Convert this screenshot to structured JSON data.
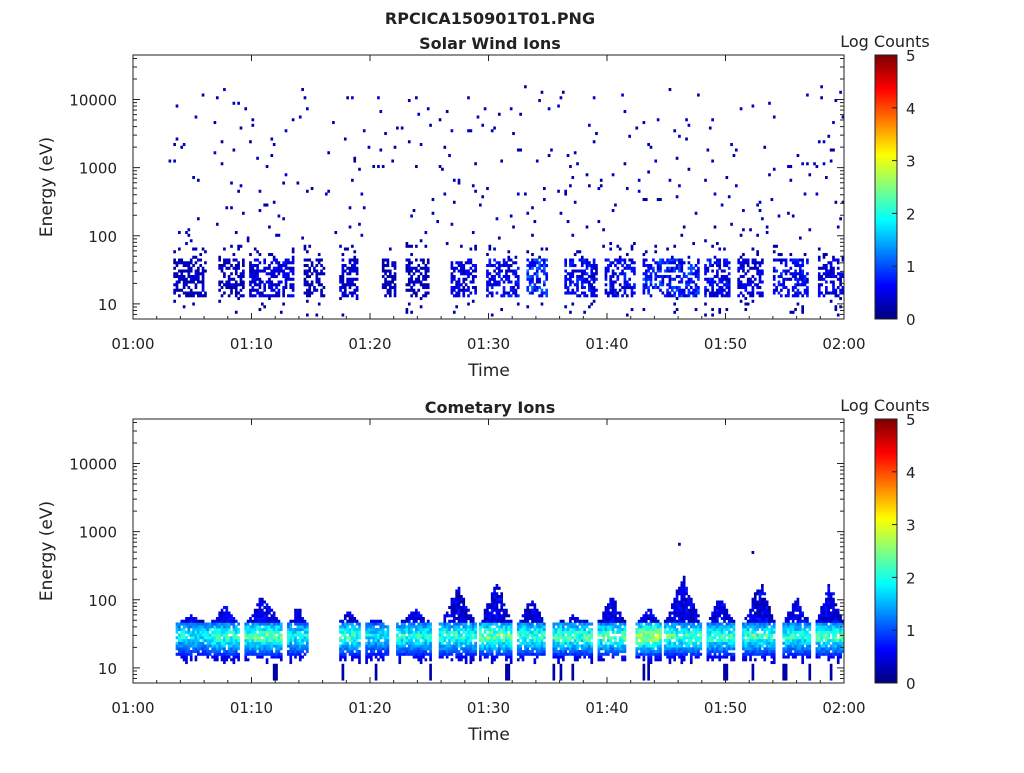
{
  "figure": {
    "title": "RPCICA150901T01.PNG"
  },
  "chart_data": [
    {
      "type": "heatmap",
      "title": "Solar Wind Ions",
      "xlabel": "Time",
      "ylabel": "Energy (eV)",
      "x_range": [
        "01:00",
        "02:00"
      ],
      "x_ticks": [
        "01:00",
        "01:10",
        "01:20",
        "01:30",
        "01:40",
        "01:50",
        "02:00"
      ],
      "y_scale": "log",
      "y_range": [
        6,
        45000
      ],
      "y_ticks": [
        "10",
        "100",
        "1000",
        "10000"
      ],
      "colorbar": {
        "label": "Log Counts",
        "range": [
          0,
          5
        ],
        "ticks": [
          "0",
          "1",
          "2",
          "3",
          "4",
          "5"
        ],
        "colormap": "jet"
      },
      "data_start_minute": 3,
      "band": {
        "energy_range": [
          12,
          45
        ],
        "typical_log_counts": 0.4,
        "bursts": [
          {
            "t": [
              3.5,
              6.2
            ],
            "lc": 0.3
          },
          {
            "t": [
              7.2,
              9.3
            ],
            "lc": 0.3
          },
          {
            "t": [
              9.8,
              13.5
            ],
            "lc": 0.5
          },
          {
            "t": [
              14.5,
              16.2
            ],
            "lc": 0.3
          },
          {
            "t": [
              17.5,
              19.0
            ],
            "lc": 0.4
          },
          {
            "t": [
              21.0,
              22.2
            ],
            "lc": 0.3
          },
          {
            "t": [
              23.0,
              25.0
            ],
            "lc": 0.3
          },
          {
            "t": [
              26.8,
              29.0
            ],
            "lc": 0.5
          },
          {
            "t": [
              29.8,
              32.5
            ],
            "lc": 0.6
          },
          {
            "t": [
              33.2,
              35.0
            ],
            "lc": 0.9
          },
          {
            "t": [
              36.5,
              39.2
            ],
            "lc": 0.6
          },
          {
            "t": [
              39.8,
              42.5
            ],
            "lc": 0.6
          },
          {
            "t": [
              43.0,
              47.8
            ],
            "lc": 0.8
          },
          {
            "t": [
              48.3,
              50.5
            ],
            "lc": 0.6
          },
          {
            "t": [
              51.0,
              53.2
            ],
            "lc": 0.5
          },
          {
            "t": [
              54.0,
              57.0
            ],
            "lc": 0.6
          },
          {
            "t": [
              57.8,
              60.0
            ],
            "lc": 0.5
          }
        ]
      },
      "scatter": {
        "energy_range": [
          60,
          15000
        ],
        "log_counts": 0.1
      }
    },
    {
      "type": "heatmap",
      "title": "Cometary Ions",
      "xlabel": "Time",
      "ylabel": "Energy (eV)",
      "x_range": [
        "01:00",
        "02:00"
      ],
      "x_ticks": [
        "01:00",
        "01:10",
        "01:20",
        "01:30",
        "01:40",
        "01:50",
        "02:00"
      ],
      "y_scale": "log",
      "y_range": [
        6,
        45000
      ],
      "y_ticks": [
        "10",
        "100",
        "1000",
        "10000"
      ],
      "colorbar": {
        "label": "Log Counts",
        "range": [
          0,
          5
        ],
        "ticks": [
          "0",
          "1",
          "2",
          "3",
          "4",
          "5"
        ],
        "colormap": "jet"
      },
      "data_start_minute": 3.5,
      "gaps": [
        [
          14.8,
          17.3
        ]
      ],
      "bursts": [
        {
          "t": [
            3.6,
            6.3
          ],
          "peak_energy": 60,
          "peak_lc": 1.6
        },
        {
          "t": [
            6.5,
            9.0
          ],
          "peak_energy": 90,
          "peak_lc": 1.9
        },
        {
          "t": [
            9.4,
            12.5
          ],
          "peak_energy": 130,
          "peak_lc": 2.1
        },
        {
          "t": [
            13.0,
            14.8
          ],
          "peak_energy": 80,
          "peak_lc": 1.7
        },
        {
          "t": [
            17.3,
            19.2
          ],
          "peak_energy": 75,
          "peak_lc": 1.9
        },
        {
          "t": [
            19.6,
            21.6
          ],
          "peak_energy": 50,
          "peak_lc": 1.5
        },
        {
          "t": [
            22.3,
            25.3
          ],
          "peak_energy": 75,
          "peak_lc": 1.8
        },
        {
          "t": [
            25.8,
            29.0
          ],
          "peak_energy": 160,
          "peak_lc": 1.9
        },
        {
          "t": [
            29.3,
            32.0
          ],
          "peak_energy": 210,
          "peak_lc": 2.2
        },
        {
          "t": [
            32.5,
            34.8
          ],
          "peak_energy": 120,
          "peak_lc": 1.9
        },
        {
          "t": [
            35.5,
            38.8
          ],
          "peak_energy": 60,
          "peak_lc": 2.0
        },
        {
          "t": [
            39.2,
            41.6
          ],
          "peak_energy": 130,
          "peak_lc": 2.0
        },
        {
          "t": [
            42.4,
            44.6
          ],
          "peak_energy": 80,
          "peak_lc": 2.4
        },
        {
          "t": [
            44.8,
            48.0
          ],
          "peak_energy": 240,
          "peak_lc": 2.0
        },
        {
          "t": [
            48.4,
            50.8
          ],
          "peak_energy": 130,
          "peak_lc": 1.9
        },
        {
          "t": [
            51.5,
            54.3
          ],
          "peak_energy": 200,
          "peak_lc": 1.9
        },
        {
          "t": [
            54.8,
            57.2
          ],
          "peak_energy": 120,
          "peak_lc": 1.8
        },
        {
          "t": [
            57.6,
            60.0
          ],
          "peak_energy": 200,
          "peak_lc": 2.0
        }
      ],
      "isolated_points": [
        {
          "t": 46.0,
          "energy": 650,
          "lc": 0.2
        },
        {
          "t": 52.2,
          "energy": 480,
          "lc": 0.2
        }
      ]
    }
  ]
}
